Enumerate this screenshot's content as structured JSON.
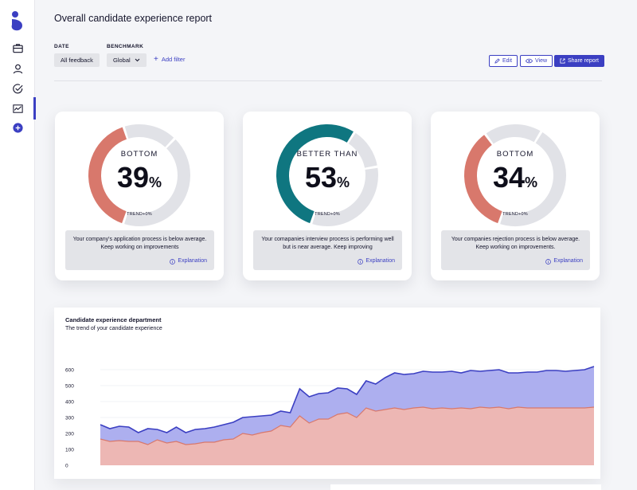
{
  "page": {
    "title": "Overall candidate experience report"
  },
  "sidebar": {
    "items": [
      {
        "icon": "briefcase-icon"
      },
      {
        "icon": "user-icon"
      },
      {
        "icon": "check-circle-icon"
      },
      {
        "icon": "chart-icon",
        "active": true
      },
      {
        "icon": "plus-circle-icon"
      }
    ]
  },
  "filters": {
    "date_label": "DATE",
    "date_value": "All feedback",
    "benchmark_label": "BENCHMARK",
    "benchmark_value": "Global",
    "add_filter": "Add filter"
  },
  "actions": {
    "edit": "Edit",
    "view": "View",
    "share": "Share report"
  },
  "cards": [
    {
      "label": "BOTTOM",
      "value": "39",
      "unit": "%",
      "trend": "TREND+0%",
      "fraction": 0.39,
      "color": "#d8786c",
      "note": "Your company's application process is below average. Keep working on improvements",
      "explanation": "Explanation"
    },
    {
      "label": "BETTER THAN",
      "value": "53",
      "unit": "%",
      "trend": "TREND+0%",
      "fraction": 0.53,
      "color": "#0f7680",
      "note": "Your comapanies interview process is performing well but is near average. Keep improving",
      "explanation": "Explanation"
    },
    {
      "label": "BOTTOM",
      "value": "34",
      "unit": "%",
      "trend": "TREND+0%",
      "fraction": 0.34,
      "color": "#d8786c",
      "note": "Your companies rejection process is below average. Keep working on improvements.",
      "explanation": "Explanation"
    }
  ],
  "chart_data": {
    "type": "area",
    "title": "Candidate experience department",
    "subtitle": "The trend of your candidate experience",
    "ylim": [
      0,
      600
    ],
    "yticks": [
      0,
      100,
      200,
      300,
      400,
      500,
      600
    ],
    "grid": true,
    "series": [
      {
        "color": "#3b3fc2",
        "fill": "#a9abee",
        "values": [
          255,
          230,
          245,
          240,
          205,
          230,
          225,
          205,
          240,
          205,
          225,
          230,
          240,
          255,
          270,
          300,
          305,
          310,
          315,
          340,
          330,
          480,
          430,
          450,
          455,
          485,
          480,
          445,
          530,
          510,
          550,
          580,
          570,
          575,
          590,
          585,
          585,
          590,
          580,
          595,
          590,
          595,
          600,
          580,
          580,
          585,
          585,
          595,
          595,
          590,
          595,
          600,
          620
        ]
      },
      {
        "color": "#d8786c",
        "fill": "#f0b7b0",
        "values": [
          165,
          150,
          155,
          150,
          150,
          130,
          160,
          140,
          150,
          130,
          135,
          145,
          145,
          160,
          165,
          200,
          190,
          205,
          215,
          250,
          240,
          310,
          265,
          290,
          290,
          320,
          330,
          300,
          360,
          340,
          350,
          360,
          350,
          360,
          365,
          355,
          360,
          355,
          360,
          355,
          365,
          360,
          365,
          355,
          365,
          360,
          360,
          360,
          360,
          360,
          360,
          360,
          365
        ]
      }
    ]
  }
}
